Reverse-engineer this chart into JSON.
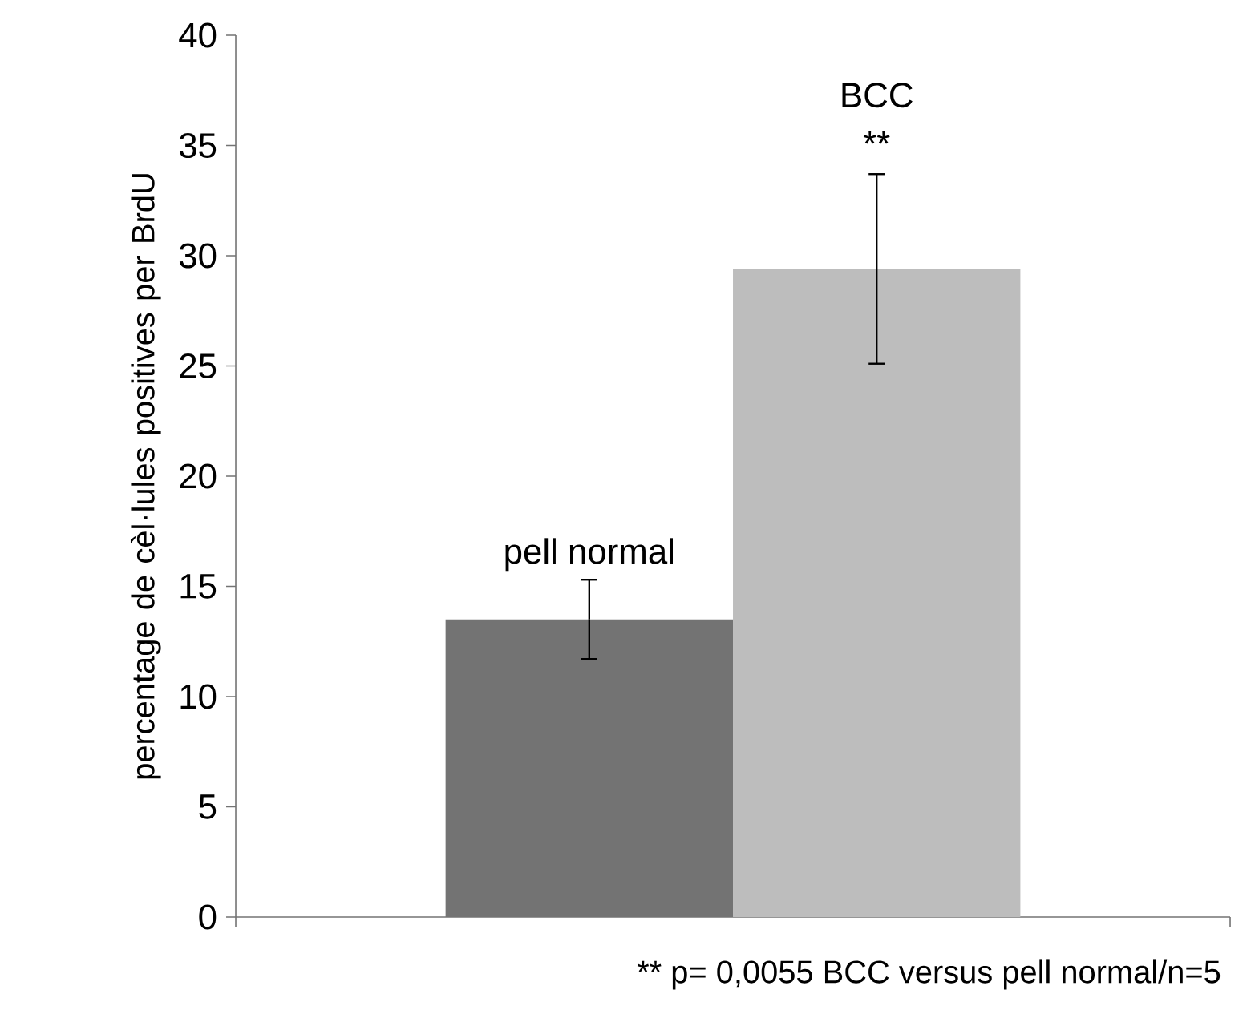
{
  "chart_data": {
    "type": "bar",
    "ylabel": "percentage de cèl·lules positives per BrdU",
    "categories": [
      null,
      null
    ],
    "values": [
      13.5,
      29.4
    ],
    "errors": [
      1.8,
      4.3
    ],
    "colors": [
      "#737373",
      "#bdbdbd"
    ],
    "ylim": [
      0,
      40
    ],
    "yticks": [
      0,
      5,
      10,
      15,
      20,
      25,
      30,
      35,
      40
    ],
    "grid": false,
    "annotations": [
      "pell normal",
      "BCC",
      "**",
      "** p= 0,0055 BCC versus pell normal/n=5"
    ]
  }
}
